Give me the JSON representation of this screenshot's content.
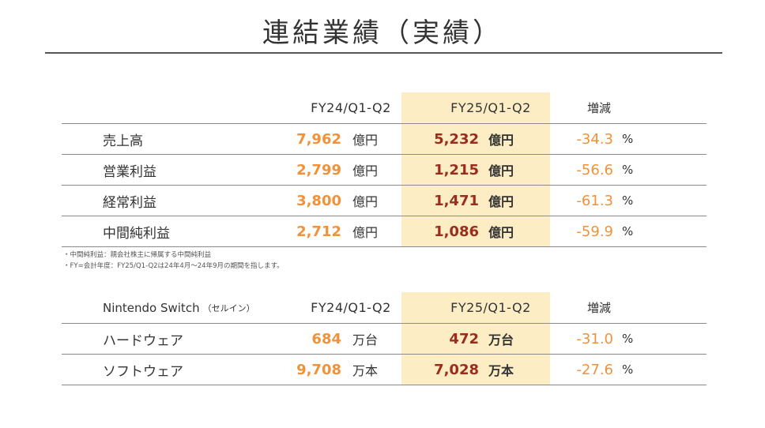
{
  "title": "連結業績（実績）",
  "financials": {
    "headers": {
      "label": "",
      "fy24": "FY24/Q1-Q2",
      "fy25": "FY25/Q1-Q2",
      "change": "増減"
    },
    "rows": [
      {
        "label": "売上高",
        "fy24_value": "7,962",
        "fy24_unit": "億円",
        "fy25_value": "5,232",
        "fy25_unit": "億円",
        "change": "-34.3",
        "pct": "%"
      },
      {
        "label": "営業利益",
        "fy24_value": "2,799",
        "fy24_unit": "億円",
        "fy25_value": "1,215",
        "fy25_unit": "億円",
        "change": "-56.6",
        "pct": "%"
      },
      {
        "label": "経常利益",
        "fy24_value": "3,800",
        "fy24_unit": "億円",
        "fy25_value": "1,471",
        "fy25_unit": "億円",
        "change": "-61.3",
        "pct": "%"
      },
      {
        "label": "中間純利益",
        "fy24_value": "2,712",
        "fy24_unit": "億円",
        "fy25_value": "1,086",
        "fy25_unit": "億円",
        "change": "-59.9",
        "pct": "%"
      }
    ]
  },
  "notes": [
    "・中間純利益：親会社株主に帰属する中間純利益",
    "・FY=会計年度：FY25/Q1-Q2は24年4月～24年9月の期間を指します。"
  ],
  "sellin": {
    "headers": {
      "label": "Nintendo Switch",
      "label_sub": "（セルイン）",
      "fy24": "FY24/Q1-Q2",
      "fy25": "FY25/Q1-Q2",
      "change": "増減"
    },
    "rows": [
      {
        "label": "ハードウェア",
        "fy24_value": "684",
        "fy24_unit": "万台",
        "fy25_value": "472",
        "fy25_unit": "万台",
        "change": "-31.0",
        "pct": "%"
      },
      {
        "label": "ソフトウェア",
        "fy24_value": "9,708",
        "fy24_unit": "万本",
        "fy25_value": "7,028",
        "fy25_unit": "万本",
        "change": "-27.6",
        "pct": "%"
      }
    ]
  },
  "colors": {
    "highlight": "#fcedc4",
    "fy24_value": "#f0923a",
    "fy25_value": "#9a2d1e",
    "change": "#f0923a"
  }
}
